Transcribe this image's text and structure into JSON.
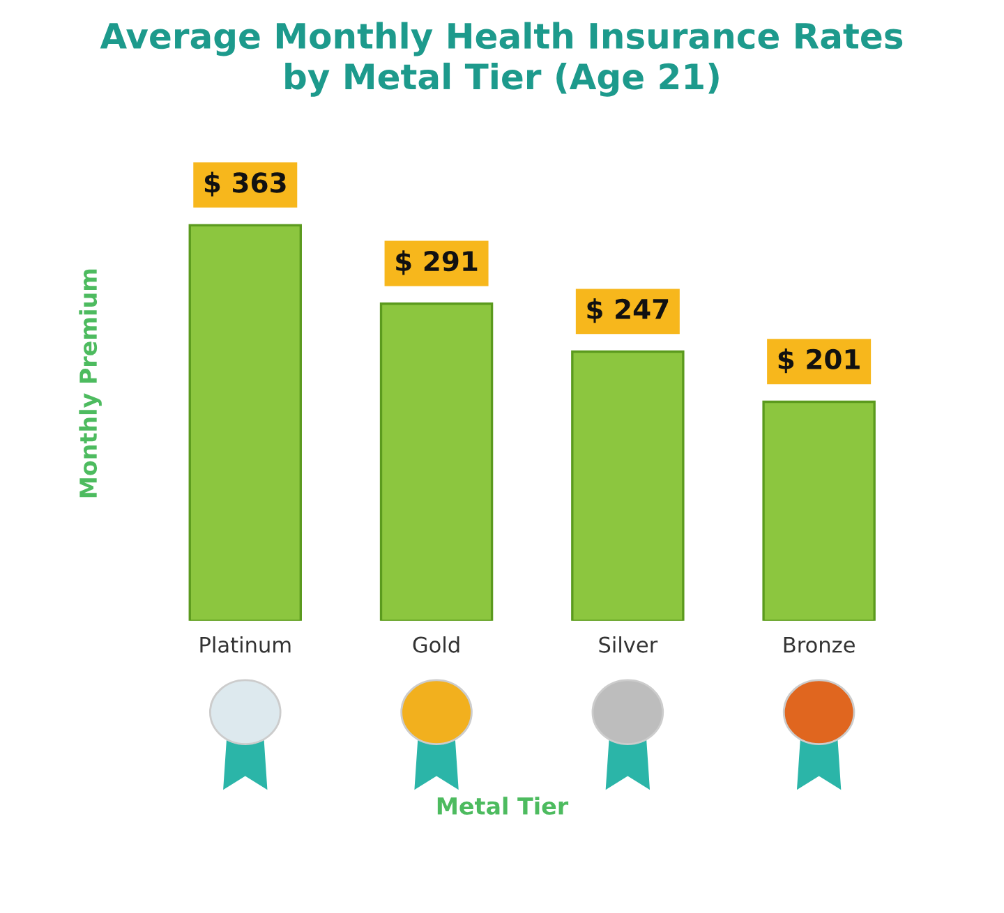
{
  "chart_data": {
    "type": "bar",
    "title": "Average Monthly Health Insurance Rates\nby Metal Tier (Age 21)",
    "annotations": [
      "Metal Tier"
    ],
    "ylabel": "Monthly Premium",
    "categories": [
      "Platinum",
      "Gold",
      "Silver",
      "Bronze"
    ],
    "values": [
      363,
      291,
      247,
      201
    ],
    "value_labels": [
      "$ 363",
      "$ 291",
      "$ 247",
      "$ 201"
    ],
    "color": "#8cc63f",
    "grid": false
  }
}
